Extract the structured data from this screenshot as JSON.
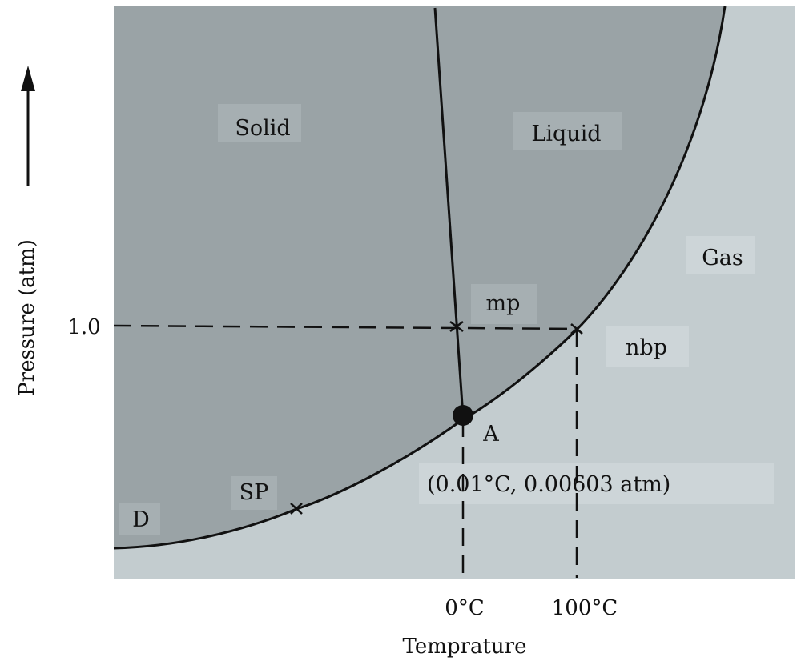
{
  "diagram": {
    "type": "phase-diagram",
    "regions": {
      "solid": "Solid",
      "liquid": "Liquid",
      "gas": "Gas"
    },
    "points": {
      "mp": "mp",
      "nbp": "nbp",
      "triple": "A",
      "triple_coords": "(0.01°C, 0.00603 atm)",
      "sp": "SP",
      "d": "D"
    },
    "axes": {
      "ylabel": "Pressure (atm)",
      "xlabel": "Temprature",
      "y_tick": "1.0",
      "x_ticks": [
        "0°C",
        "100°C"
      ]
    },
    "colors": {
      "condensed_region": "#9aa3a6",
      "gas_region": "#c3cccf",
      "label_box": "#a6afb2",
      "line": "#111111"
    }
  }
}
